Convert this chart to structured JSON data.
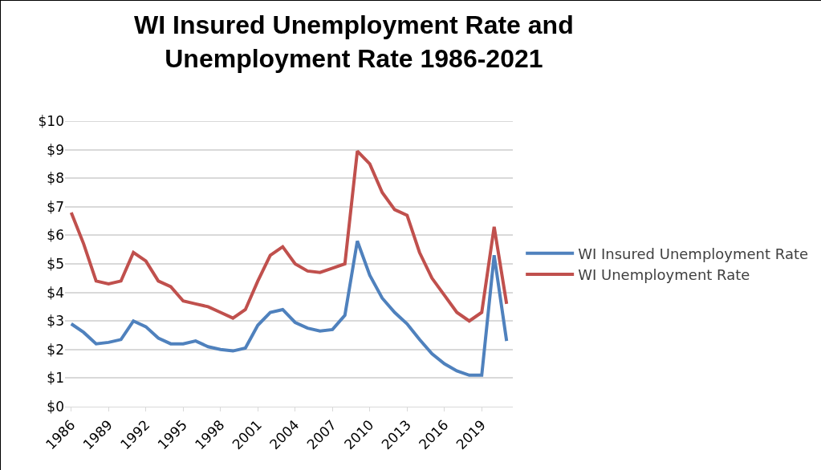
{
  "chart_data": {
    "type": "line",
    "title": "WI Insured Unemployment Rate and Unemployment Rate 1986-2021",
    "categories": [
      "1986",
      null,
      null,
      "1989",
      null,
      null,
      "1992",
      null,
      null,
      "1995",
      null,
      null,
      "1998",
      null,
      null,
      "2001",
      null,
      null,
      "2004",
      null,
      null,
      "2007",
      null,
      null,
      "2010",
      null,
      null,
      "2013",
      null,
      null,
      "2016",
      null,
      null,
      "2019",
      null,
      null
    ],
    "series": [
      {
        "name": "WI Insured Unemployment Rate",
        "color": "#4f81bd",
        "values": [
          2.9,
          2.6,
          2.2,
          2.25,
          2.35,
          3.0,
          2.8,
          2.4,
          2.2,
          2.2,
          2.3,
          2.1,
          2.0,
          1.95,
          2.05,
          2.85,
          3.3,
          3.4,
          2.95,
          2.75,
          2.65,
          2.7,
          3.2,
          5.8,
          4.6,
          3.8,
          3.3,
          2.9,
          2.35,
          1.85,
          1.5,
          1.25,
          1.1,
          1.1,
          5.3,
          2.3
        ]
      },
      {
        "name": "WI Unemployment Rate",
        "color": "#c0504d",
        "values": [
          6.8,
          5.7,
          4.4,
          4.3,
          4.4,
          5.4,
          5.1,
          4.4,
          4.2,
          3.7,
          3.6,
          3.5,
          3.3,
          3.1,
          3.4,
          4.4,
          5.3,
          5.6,
          5.0,
          4.75,
          4.7,
          4.85,
          5.0,
          8.95,
          8.5,
          7.5,
          6.9,
          6.7,
          5.4,
          4.5,
          3.9,
          3.3,
          3.0,
          3.3,
          6.3,
          3.6
        ]
      }
    ],
    "ylim": [
      0,
      10
    ],
    "yticks": [
      {
        "value": 0,
        "label": "$0"
      },
      {
        "value": 1,
        "label": "$1"
      },
      {
        "value": 2,
        "label": "$2"
      },
      {
        "value": 3,
        "label": "$3"
      },
      {
        "value": 4,
        "label": "$4"
      },
      {
        "value": 5,
        "label": "$5"
      },
      {
        "value": 6,
        "label": "$6"
      },
      {
        "value": 7,
        "label": "$7"
      },
      {
        "value": 8,
        "label": "$8"
      },
      {
        "value": 9,
        "label": "$9"
      },
      {
        "value": 10,
        "label": "$10"
      }
    ],
    "grid": "y",
    "legend": "right",
    "marker": "none",
    "line_style": "solid"
  }
}
